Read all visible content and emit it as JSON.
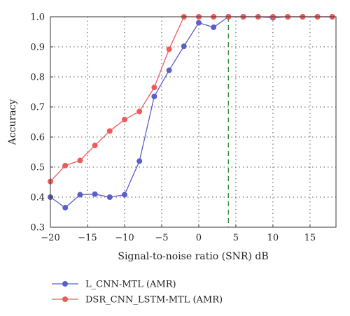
{
  "chart_data": {
    "type": "line",
    "title": "",
    "xlabel": "Signal-to-noise ratio (SNR) dB",
    "ylabel": "Accuracy",
    "xlim": [
      -20,
      18.5
    ],
    "ylim": [
      0.3,
      1.0
    ],
    "xticks": [
      -20,
      -15,
      -10,
      -5,
      0,
      5,
      10,
      15
    ],
    "yticks": [
      0.3,
      0.4,
      0.5,
      0.6,
      0.7,
      0.8,
      0.9,
      1.0
    ],
    "grid": true,
    "legend": "below-left",
    "reference_line": {
      "x": 4,
      "color": "#2e8b3a",
      "style": "dashed"
    },
    "x": [
      -20,
      -18,
      -16,
      -14,
      -12,
      -10,
      -8,
      -6,
      -4,
      -2,
      0,
      2,
      4,
      6,
      8,
      10,
      12,
      14,
      16,
      18
    ],
    "series": [
      {
        "name": "L_CNN-MTL (AMR)",
        "color": "#5b5fc7",
        "values": [
          0.4,
          0.365,
          0.408,
          0.41,
          0.4,
          0.408,
          0.52,
          0.735,
          0.822,
          0.902,
          0.98,
          0.965,
          1.0,
          1.0,
          1.0,
          0.997,
          1.0,
          1.0,
          1.0,
          1.0
        ]
      },
      {
        "name": "DSR_CNN_LSTM-MTL (AMR)",
        "color": "#f05a5a",
        "values": [
          0.452,
          0.505,
          0.522,
          0.572,
          0.62,
          0.658,
          0.685,
          0.765,
          0.892,
          1.0,
          1.0,
          1.0,
          1.0,
          1.0,
          1.0,
          1.0,
          1.0,
          1.0,
          1.0,
          1.0
        ]
      }
    ]
  }
}
